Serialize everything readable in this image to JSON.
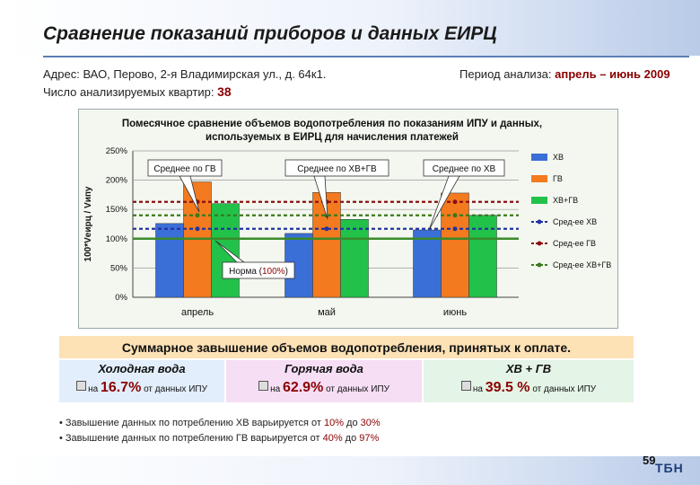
{
  "header": {
    "title": "Сравнение показаний приборов и данных ЕИРЦ",
    "address": "Адрес: ВАО, Перово, 2-я Владимирская ул., д. 64к1.",
    "apartments_label": "Число анализируемых квартир:",
    "apartments_value": "38",
    "period_label": "Период анализа:",
    "period_value": "апрель – июнь 2009"
  },
  "chart_data": {
    "type": "bar",
    "title": "Помесячное сравнение объемов  водопотребления по показаниям ИПУ и данных, используемых в ЕИРЦ для начисления платежей",
    "ylabel": "100*Vеирц / Vипу",
    "categories": [
      "апрель",
      "май",
      "июнь"
    ],
    "series": [
      {
        "name": "ХВ",
        "color": "#3b6fd8",
        "values": [
          126,
          109,
          115
        ]
      },
      {
        "name": "ГВ",
        "color": "#f47a1f",
        "values": [
          197,
          179,
          178
        ]
      },
      {
        "name": "ХВ+ГВ",
        "color": "#22c24a",
        "values": [
          160,
          133,
          140
        ]
      }
    ],
    "averages": [
      {
        "name": "Сред-ее ХВ",
        "value": 117,
        "color": "#2233a0"
      },
      {
        "name": "Сред-ее ГВ",
        "value": 163,
        "color": "#8b1010"
      },
      {
        "name": "Сред-ее ХВ+ГВ",
        "value": 140,
        "color": "#3a7a1a"
      }
    ],
    "norm": {
      "value": 100,
      "color": "#3a8a2a"
    },
    "ylim": [
      0,
      250
    ],
    "yticks": [
      "0%",
      "50%",
      "100%",
      "150%",
      "200%",
      "250%"
    ],
    "callouts": [
      "Среднее по ГВ",
      "Среднее по ХВ+ГВ",
      "Среднее по ХВ"
    ],
    "norm_label_prefix": "Норма (",
    "norm_label_value": "100%",
    "norm_label_suffix": ")"
  },
  "summary": {
    "title": "Суммарное завышение объемов водопотребления, принятых к оплате.",
    "cells": [
      {
        "head": "Холодная вода",
        "prefix": "на",
        "pct": "16.7%",
        "suffix": "от данных ИПУ",
        "color": "#e2eefb"
      },
      {
        "head": "Горячая вода",
        "prefix": "на",
        "pct": "62.9%",
        "suffix": "от данных ИПУ",
        "color": "#f6def5"
      },
      {
        "head": "ХВ + ГВ",
        "prefix": "на",
        "pct": "39.5 %",
        "suffix": "от данных ИПУ",
        "color": "#e4f4e6"
      }
    ]
  },
  "bullets": [
    {
      "text": "•  Завышение данных по потреблению ХВ варьируется от ",
      "from": "10%",
      "mid": " до ",
      "to": "30%"
    },
    {
      "text": "•  Завышение данных по потреблению ГВ варьируется от ",
      "from": "40%",
      "mid": " до ",
      "to": "97%"
    }
  ],
  "footer": {
    "page": "59",
    "logo": "ТБН"
  }
}
